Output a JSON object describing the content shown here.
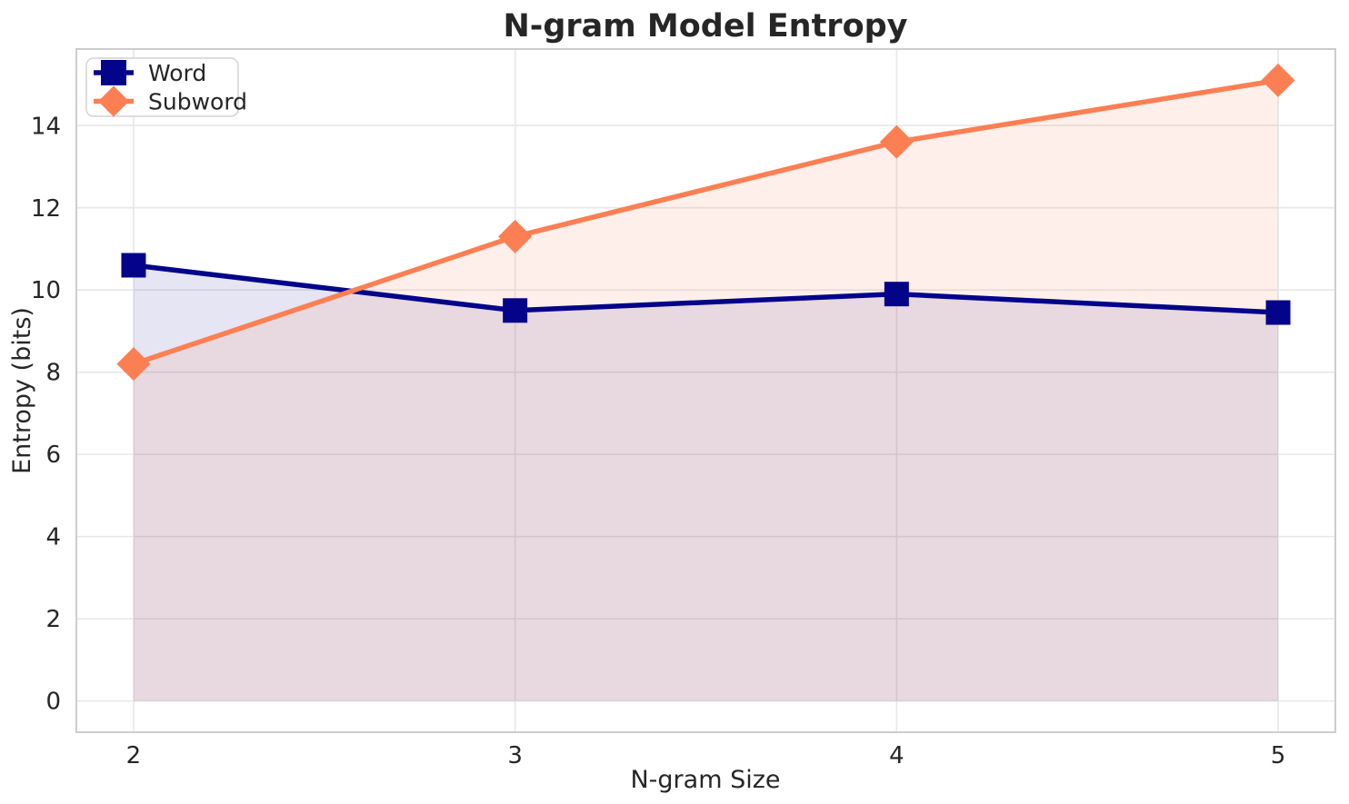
{
  "chart_data": {
    "type": "line",
    "title": "N-gram Model Entropy",
    "xlabel": "N-gram Size",
    "ylabel": "Entropy (bits)",
    "x": [
      2,
      3,
      4,
      5
    ],
    "series": [
      {
        "name": "Word",
        "values": [
          10.6,
          9.5,
          9.9,
          9.45
        ],
        "color": "#04048a",
        "marker": "square",
        "fill_opacity": 0.1
      },
      {
        "name": "Subword",
        "values": [
          8.2,
          11.3,
          13.6,
          15.1
        ],
        "color": "#fc7f53",
        "marker": "diamond",
        "fill_opacity": 0.12
      }
    ],
    "xticks": [
      2,
      3,
      4,
      5
    ],
    "yticks": [
      0,
      2,
      4,
      6,
      8,
      10,
      12,
      14
    ],
    "xlim": [
      1.85,
      5.15
    ],
    "ylim": [
      -0.76,
      15.86
    ],
    "grid": true,
    "grid_color": "#e7e7e7",
    "spine_color": "#cdcdcd",
    "fill_baseline": 0,
    "legend_position": "upper left",
    "line_width": 5.5
  }
}
